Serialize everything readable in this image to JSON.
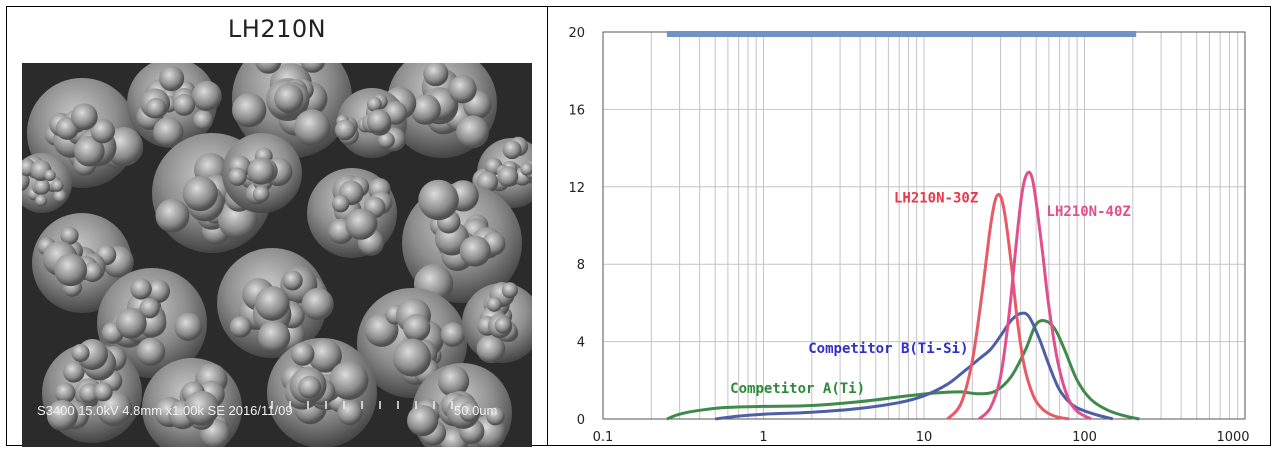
{
  "sem": {
    "title": "LH210N",
    "caption": "S3400 15.0kV 4.8mm x1.00k SE  2016/11/09",
    "scale_label": "50.0um"
  },
  "chart_data": {
    "type": "line",
    "xscale": "log",
    "xlim": [
      0.1,
      1000
    ],
    "ylim": [
      0,
      20
    ],
    "x_ticks": [
      0.1,
      1,
      10,
      100,
      1000
    ],
    "x_tick_labels": [
      "0.1",
      "1",
      "10",
      "100",
      "1000"
    ],
    "y_ticks": [
      0,
      4,
      8,
      12,
      16,
      20
    ],
    "y_tick_labels": [
      "0",
      "4",
      "8",
      "12",
      "16",
      "20"
    ],
    "grid": true,
    "range_bar": {
      "x": [
        0.25,
        210
      ],
      "y": 20,
      "color": "#6f93c6"
    },
    "series": [
      {
        "name": "Competitor A(Ti)",
        "color": "#3f8a4a",
        "x": [
          0.25,
          0.3,
          0.4,
          0.6,
          1,
          2,
          4,
          8,
          12,
          17,
          22,
          28,
          35,
          43,
          50,
          58,
          66,
          75,
          90,
          110,
          140,
          180,
          220
        ],
        "y": [
          0,
          0.25,
          0.45,
          0.6,
          0.65,
          0.7,
          0.9,
          1.2,
          1.35,
          1.4,
          1.3,
          1.45,
          2.2,
          3.6,
          4.9,
          5.05,
          4.6,
          3.6,
          2.0,
          1.0,
          0.45,
          0.15,
          0
        ]
      },
      {
        "name": "Competitor B(Ti-Si)",
        "color": "#4e5fa6",
        "x": [
          0.5,
          0.7,
          1,
          2,
          4,
          7,
          10,
          14,
          18,
          22,
          26,
          30,
          35,
          40,
          45,
          52,
          60,
          70,
          85,
          110,
          150
        ],
        "y": [
          0,
          0.15,
          0.25,
          0.35,
          0.55,
          0.85,
          1.2,
          1.8,
          2.5,
          3.1,
          3.6,
          4.3,
          5.1,
          5.45,
          5.3,
          4.2,
          2.8,
          1.5,
          0.7,
          0.3,
          0
        ]
      },
      {
        "name": "LH210N-30Z",
        "color": "#e85b66",
        "x": [
          14,
          17,
          20,
          23,
          26,
          28,
          30,
          32,
          35,
          38,
          42,
          48,
          55,
          65,
          80
        ],
        "y": [
          0,
          0.8,
          3,
          6.5,
          10,
          11.4,
          11.5,
          10.5,
          8,
          5.2,
          2.8,
          1.2,
          0.5,
          0.15,
          0
        ]
      },
      {
        "name": "LH210N-40Z",
        "color": "#e0508c",
        "x": [
          22,
          26,
          30,
          34,
          38,
          41,
          44,
          47,
          50,
          55,
          60,
          68,
          78,
          90,
          110
        ],
        "y": [
          0,
          0.6,
          2.2,
          5.5,
          9.5,
          11.8,
          12.7,
          12.5,
          11.2,
          8.5,
          5.8,
          3.0,
          1.2,
          0.4,
          0
        ]
      }
    ],
    "annotations": [
      {
        "text": "LH210N-30Z",
        "color": "#e8394a",
        "x": 6.5,
        "y": 11.2
      },
      {
        "text": "LH210N-40Z",
        "color": "#e0508c",
        "x": 58,
        "y": 10.5
      },
      {
        "text": "Competitor B(Ti-Si)",
        "color": "#3030c8",
        "x": 1.9,
        "y": 3.4
      },
      {
        "text": "Competitor A(Ti)",
        "color": "#2e8a3a",
        "x": 0.62,
        "y": 1.35
      }
    ]
  }
}
